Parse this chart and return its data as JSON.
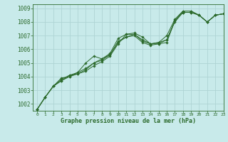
{
  "xlabel": "Graphe pression niveau de la mer (hPa)",
  "xlim": [
    -0.5,
    23
  ],
  "ylim": [
    1001.5,
    1009.3
  ],
  "yticks": [
    1002,
    1003,
    1004,
    1005,
    1006,
    1007,
    1008,
    1009
  ],
  "xticks": [
    0,
    1,
    2,
    3,
    4,
    5,
    6,
    7,
    8,
    9,
    10,
    11,
    12,
    13,
    14,
    15,
    16,
    17,
    18,
    19,
    20,
    21,
    22,
    23
  ],
  "bg_color": "#c8eaea",
  "grid_color": "#aed4d4",
  "line_color": "#2d6b2d",
  "tick_color": "#2d6b2d",
  "series": [
    [
      1001.6,
      1002.5,
      1003.3,
      1003.7,
      1004.0,
      1004.2,
      1004.4,
      1004.8,
      1005.1,
      1005.5,
      1006.4,
      1007.1,
      1007.2,
      1006.9,
      1006.4,
      1006.4,
      1006.5,
      1008.1,
      1008.7,
      1008.7,
      1008.5,
      1008.0,
      1008.5,
      1008.6
    ],
    [
      1001.6,
      1002.5,
      1003.3,
      1003.8,
      1004.1,
      1004.3,
      1004.6,
      1005.0,
      1005.2,
      1005.6,
      1006.6,
      1006.9,
      1007.0,
      1006.5,
      1006.3,
      1006.4,
      1006.7,
      1008.0,
      1008.7,
      1008.7,
      1008.5,
      1008.0,
      1008.5,
      1008.6
    ],
    [
      1001.6,
      1002.5,
      1003.3,
      1003.9,
      1004.0,
      1004.3,
      1005.0,
      1005.5,
      1005.3,
      1005.7,
      1006.8,
      1007.1,
      1007.1,
      1006.6,
      1006.4,
      1006.5,
      1007.0,
      1008.2,
      1008.8,
      1008.8,
      1008.5,
      1008.0,
      1008.5,
      1008.6
    ],
    [
      1001.6,
      1002.5,
      1003.3,
      1003.7,
      1004.1,
      1004.2,
      1004.5,
      1005.0,
      1005.3,
      1005.6,
      1006.5,
      1006.9,
      1007.1,
      1006.7,
      1006.4,
      1006.5,
      1006.7,
      1008.1,
      1008.8,
      1008.8,
      1008.5,
      1008.0,
      1008.5,
      1008.6
    ]
  ],
  "marker": "D",
  "marker_size": 1.8,
  "line_width": 0.7,
  "ytick_fontsize": 5.5,
  "xtick_fontsize": 4.5,
  "xlabel_fontsize": 6.0
}
